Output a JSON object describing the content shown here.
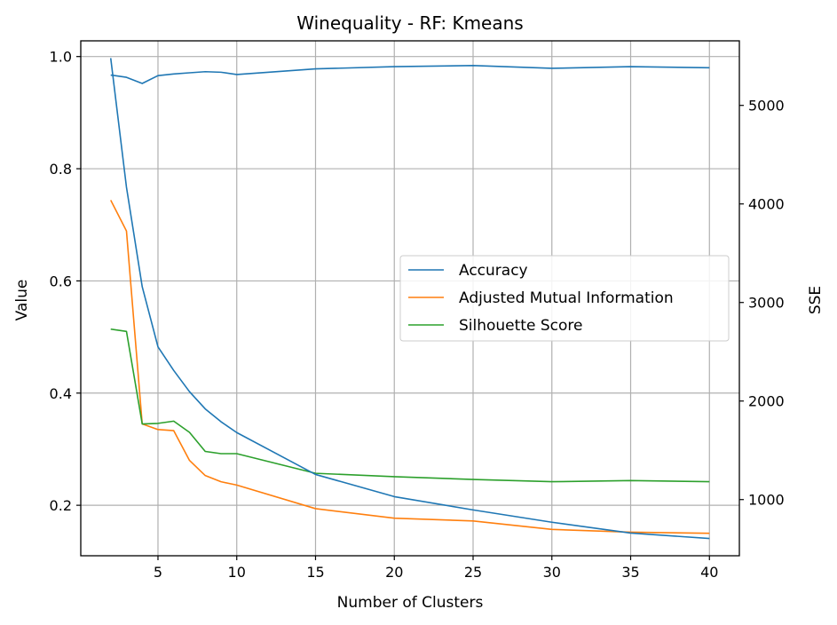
{
  "chart_data": {
    "type": "line",
    "title": "Winequality - RF: Kmeans",
    "xlabel": "Number of Clusters",
    "ylabel": "Value",
    "y2label": "SSE",
    "xlim": [
      0.1,
      41.9
    ],
    "ylim": [
      0.11,
      1.028
    ],
    "y2lim": [
      430,
      5655
    ],
    "xticks": [
      5,
      10,
      15,
      20,
      25,
      30,
      35,
      40
    ],
    "yticks": [
      0.2,
      0.4,
      0.6,
      0.8,
      1.0
    ],
    "ytick_labels": [
      "0.2",
      "0.4",
      "0.6",
      "0.8",
      "1.0"
    ],
    "y2ticks": [
      1000,
      2000,
      3000,
      4000,
      5000
    ],
    "grid": true,
    "legend_position": "center-right",
    "x": [
      2,
      3,
      4,
      5,
      6,
      7,
      8,
      9,
      10,
      15,
      20,
      25,
      30,
      35,
      40
    ],
    "series": [
      {
        "name": "Accuracy",
        "axis": "left",
        "color": "#1f77b4",
        "values": [
          0.967,
          0.963,
          0.952,
          0.966,
          0.969,
          0.971,
          0.973,
          0.972,
          0.968,
          0.978,
          0.982,
          0.984,
          0.979,
          0.982,
          0.98
        ]
      },
      {
        "name": "Adjusted Mutual Information",
        "axis": "left",
        "color": "#ff7f0e",
        "values": [
          0.744,
          0.689,
          0.345,
          0.335,
          0.333,
          0.28,
          0.253,
          0.242,
          0.236,
          0.194,
          0.177,
          0.172,
          0.157,
          0.152,
          0.15
        ]
      },
      {
        "name": "Silhouette Score",
        "axis": "left",
        "color": "#2ca02c",
        "values": [
          0.514,
          0.51,
          0.345,
          0.346,
          0.35,
          0.33,
          0.296,
          0.292,
          0.292,
          0.257,
          0.251,
          0.246,
          0.242,
          0.244,
          0.242
        ]
      },
      {
        "name": "SSE",
        "axis": "right",
        "color": "#1f77b4",
        "values": [
          5480,
          4170,
          3160,
          2550,
          2310,
          2095,
          1920,
          1790,
          1680,
          1255,
          1030,
          895,
          770,
          660,
          605
        ]
      }
    ]
  }
}
